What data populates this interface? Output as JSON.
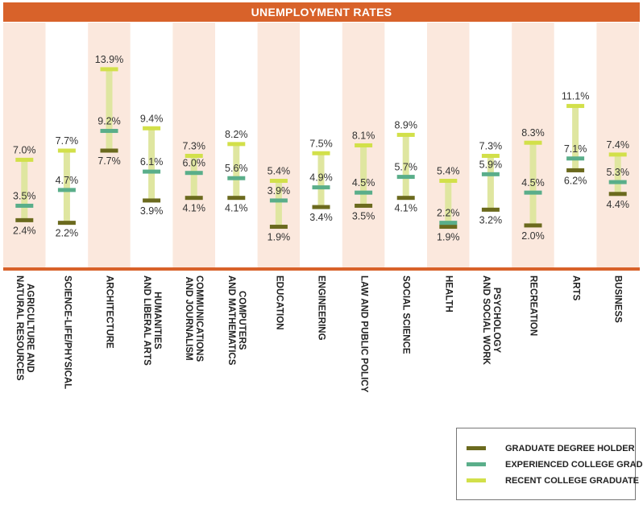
{
  "title": "UNEMPLOYMENT RATES",
  "colors": {
    "header": "#d8622a",
    "axis_line": "#d8622a",
    "stripe": "#fbe8dd",
    "range_bar": "#dfe6a0",
    "graduate": "#6b6a1e",
    "experienced": "#5aae8a",
    "recent": "#d2e04a"
  },
  "chart_data": {
    "type": "range",
    "title": "UNEMPLOYMENT RATES",
    "xlabel": "",
    "ylabel": "",
    "categories": [
      "AGRICULTURE AND\nNATURAL RESOURCES",
      "SCIENCE-LIFE/PHYSICAL",
      "ARCHITECTURE",
      "HUMANITIES\nAND LIBERAL ARTS",
      "COMMUNICATIONS\nAND JOURNALISM",
      "COMPUTERS\nAND MATHEMATICS",
      "EDUCATION",
      "ENGINEERING",
      "LAW AND PUBLIC POLICY",
      "SOCIAL SCIENCE",
      "HEALTH",
      "PSYCHOLOGY\nAND SOCIAL WORK",
      "RECREATION",
      "ARTS",
      "BUSINESS"
    ],
    "series": [
      {
        "name": "GRADUATE DEGREE HOLDER",
        "key": "graduate",
        "values": [
          2.4,
          2.2,
          7.7,
          3.9,
          4.1,
          4.1,
          1.9,
          3.4,
          3.5,
          4.1,
          1.9,
          3.2,
          2.0,
          6.2,
          4.4
        ],
        "labels": [
          "2.4%",
          "2.2%",
          "7.7%",
          "3.9%",
          "4.1%",
          "4.1%",
          "1.9%",
          "3.4%",
          "3.5%",
          "4.1%",
          "1.9%",
          "3.2%",
          "2.0%",
          "6.2%",
          "4.4%"
        ]
      },
      {
        "name": "EXPERIENCED COLLEGE GRADUATE",
        "key": "experienced",
        "values": [
          3.5,
          4.7,
          9.2,
          6.1,
          6.0,
          5.6,
          3.9,
          4.9,
          4.5,
          5.7,
          2.2,
          5.9,
          4.5,
          7.1,
          5.3
        ],
        "labels": [
          "3.5%",
          "4.7%",
          "9.2%",
          "6.1%",
          "6.0%",
          "5.6%",
          "3.9%",
          "4.9%",
          "4.5%",
          "5.7%",
          "2.2%",
          "5.9%",
          "4.5%",
          "7.1%",
          "5.3%"
        ]
      },
      {
        "name": "RECENT COLLEGE GRADUATE",
        "key": "recent",
        "values": [
          7.0,
          7.7,
          13.9,
          9.4,
          7.3,
          8.2,
          5.4,
          7.5,
          8.1,
          8.9,
          5.4,
          7.3,
          8.3,
          11.1,
          7.4
        ],
        "labels": [
          "7.0%",
          "7.7%",
          "13.9%",
          "9.4%",
          "7.3%",
          "8.2%",
          "5.4%",
          "7.5%",
          "8.1%",
          "8.9%",
          "5.4%",
          "7.3%",
          "8.3%",
          "11.1%",
          "7.4%"
        ]
      }
    ],
    "legend_position": "bottom-right"
  },
  "legend": [
    {
      "label": "GRADUATE DEGREE HOLDER",
      "key": "graduate"
    },
    {
      "label": "EXPERIENCED COLLEGE GRADUATE",
      "key": "experienced"
    },
    {
      "label": "RECENT COLLEGE GRADUATE",
      "key": "recent"
    }
  ]
}
